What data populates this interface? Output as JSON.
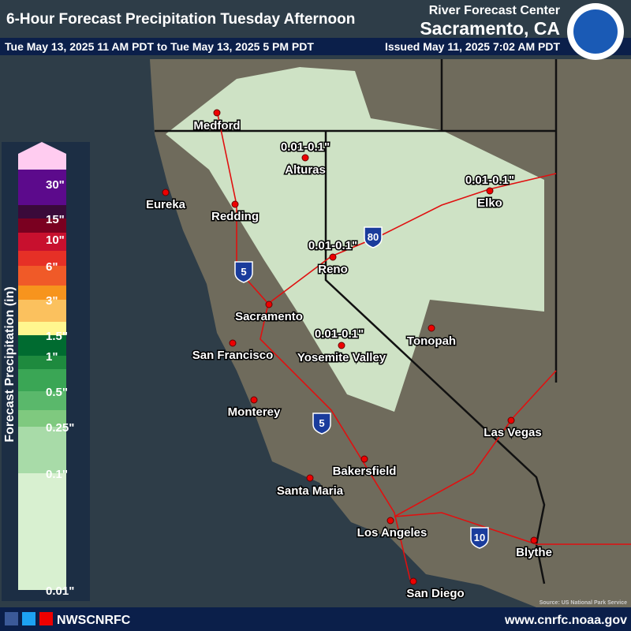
{
  "header": {
    "title": "6-Hour Forecast Precipitation Tuesday Afternoon",
    "agency": "River Forecast Center",
    "location": "Sacramento, CA",
    "valid": "Tue May 13, 2025 11 AM PDT to Tue May 13, 2025 5 PM PDT",
    "issued": "Issued May 11, 2025 7:02 AM PDT"
  },
  "legend": {
    "title": "Forecast Precipitation (in)",
    "labels": [
      "30\"",
      "15\"",
      "10\"",
      "6\"",
      "3\"",
      "1.5\"",
      "1\"",
      "0.5\"",
      "0.25\"",
      "0.1\"",
      "0.01\""
    ]
  },
  "cities": [
    "Medford",
    "Eureka",
    "Redding",
    "Alturas",
    "Reno",
    "Elko",
    "Sacramento",
    "San Francisco",
    "Tonopah",
    "Yosemite Valley",
    "Monterey",
    "Las Vegas",
    "Bakersfield",
    "Santa Maria",
    "Los Angeles",
    "Blythe",
    "San Diego"
  ],
  "amounts": [
    "0.01-0.1\"",
    "0.01-0.1\"",
    "0.01-0.1\"",
    "0.01-0.1\""
  ],
  "highways": [
    "80",
    "5",
    "5",
    "10"
  ],
  "source": "Source: US National Park Service",
  "footer": {
    "handle": "NWSCNRFC",
    "url": "www.cnrfc.noaa.gov"
  }
}
